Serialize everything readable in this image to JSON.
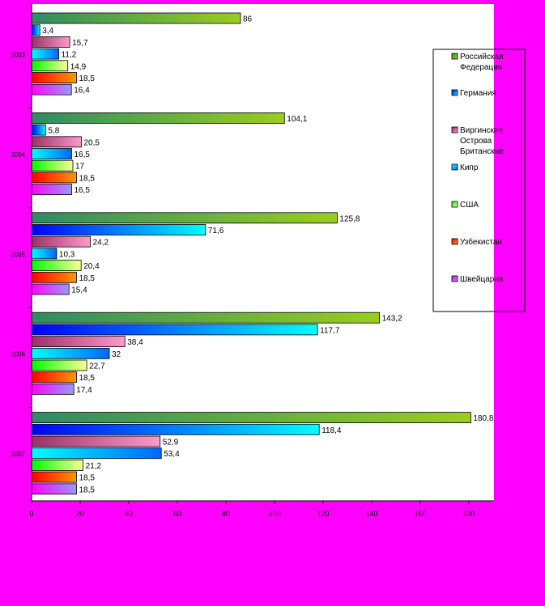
{
  "chart_data": {
    "type": "bar",
    "orientation": "horizontal",
    "categories": [
      "2003",
      "2004",
      "2005",
      "2006",
      "2007"
    ],
    "series": [
      {
        "name": "Российская Федерация",
        "values": [
          86,
          104.1,
          125.8,
          143.2,
          180.8
        ],
        "labels": [
          "86",
          "104,1",
          "125,8",
          "143,2",
          "180,8"
        ],
        "colors": [
          "#2e8b64",
          "#9acd1f"
        ]
      },
      {
        "name": "Германия",
        "values": [
          3.4,
          5.8,
          71.6,
          117.7,
          118.4
        ],
        "labels": [
          "3,4",
          "5,8",
          "71,6",
          "117,7",
          "118,4"
        ],
        "colors": [
          "#0000ff",
          "#00ffff"
        ]
      },
      {
        "name": "Виргинские Острова Британские",
        "values": [
          15.7,
          20.5,
          24.2,
          38.4,
          52.9
        ],
        "labels": [
          "15,7",
          "20,5",
          "24,2",
          "38,4",
          "52,9"
        ],
        "colors": [
          "#993366",
          "#ff99cc"
        ]
      },
      {
        "name": "Кипр",
        "values": [
          11.2,
          16.5,
          10.3,
          32,
          53.4
        ],
        "labels": [
          "11,2",
          "16,5",
          "10,3",
          "32",
          "53,4"
        ],
        "colors": [
          "#00ffff",
          "#0066ff"
        ]
      },
      {
        "name": "США",
        "values": [
          14.9,
          17,
          20.4,
          22.7,
          21.2
        ],
        "labels": [
          "14,9",
          "17",
          "20,4",
          "22,7",
          "21,2"
        ],
        "colors": [
          "#00ff00",
          "#ffff99"
        ]
      },
      {
        "name": "Узбекистан",
        "values": [
          18.5,
          18.5,
          18.5,
          18.5,
          18.5
        ],
        "labels": [
          "18,5",
          "18,5",
          "18,5",
          "18,5",
          "18,5"
        ],
        "colors": [
          "#ff0000",
          "#ff9900"
        ]
      },
      {
        "name": "Швейцария",
        "values": [
          16.4,
          16.5,
          15.4,
          17.4,
          18.5
        ],
        "labels": [
          "16,4",
          "16,5",
          "15,4",
          "17,4",
          "18,5"
        ],
        "colors": [
          "#ff00ff",
          "#9999ff"
        ]
      }
    ],
    "xticks": [
      "0",
      "20",
      "40",
      "60",
      "80",
      "100",
      "120",
      "140",
      "160",
      "180"
    ],
    "xlim": [
      0,
      190
    ],
    "title": "",
    "xlabel": "",
    "ylabel": "",
    "grid": false,
    "legend_position": "right"
  }
}
